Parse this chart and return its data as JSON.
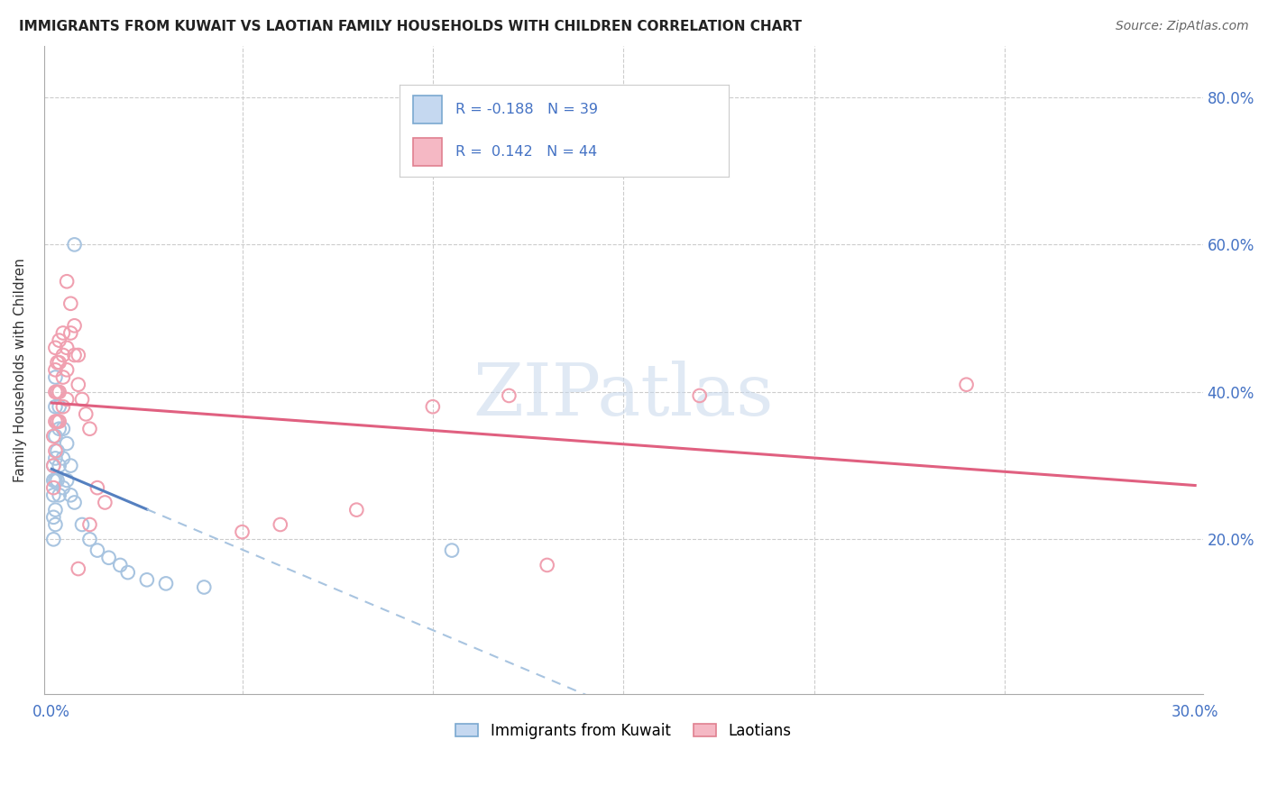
{
  "title": "IMMIGRANTS FROM KUWAIT VS LAOTIAN FAMILY HOUSEHOLDS WITH CHILDREN CORRELATION CHART",
  "source": "Source: ZipAtlas.com",
  "color_kuwait": "#a8c4e0",
  "color_laotian": "#f0a0b0",
  "color_kuwait_line": "#5580c0",
  "color_laotian_line": "#e06080",
  "color_kuwait_dash": "#a8c4e0",
  "kuwait_x": [
    0.0005,
    0.0005,
    0.0005,
    0.0005,
    0.0005,
    0.001,
    0.001,
    0.001,
    0.001,
    0.001,
    0.001,
    0.001,
    0.0015,
    0.0015,
    0.0015,
    0.0015,
    0.002,
    0.002,
    0.002,
    0.002,
    0.003,
    0.003,
    0.003,
    0.004,
    0.004,
    0.005,
    0.005,
    0.006,
    0.008,
    0.01,
    0.012,
    0.015,
    0.018,
    0.02,
    0.025,
    0.03,
    0.04,
    0.105,
    0.006
  ],
  "kuwait_y": [
    0.3,
    0.28,
    0.26,
    0.23,
    0.2,
    0.42,
    0.38,
    0.34,
    0.31,
    0.28,
    0.24,
    0.22,
    0.4,
    0.36,
    0.32,
    0.28,
    0.38,
    0.35,
    0.3,
    0.26,
    0.35,
    0.31,
    0.27,
    0.33,
    0.28,
    0.3,
    0.26,
    0.25,
    0.22,
    0.2,
    0.185,
    0.175,
    0.165,
    0.155,
    0.145,
    0.14,
    0.135,
    0.185,
    0.6
  ],
  "laotian_x": [
    0.0005,
    0.0005,
    0.0005,
    0.001,
    0.001,
    0.001,
    0.001,
    0.001,
    0.0015,
    0.0015,
    0.0015,
    0.002,
    0.002,
    0.002,
    0.002,
    0.003,
    0.003,
    0.003,
    0.003,
    0.004,
    0.004,
    0.004,
    0.005,
    0.005,
    0.006,
    0.006,
    0.007,
    0.007,
    0.008,
    0.009,
    0.01,
    0.012,
    0.014,
    0.05,
    0.06,
    0.08,
    0.1,
    0.12,
    0.13,
    0.17,
    0.24,
    0.004,
    0.007,
    0.01
  ],
  "laotian_y": [
    0.34,
    0.3,
    0.27,
    0.46,
    0.43,
    0.4,
    0.36,
    0.32,
    0.44,
    0.4,
    0.36,
    0.47,
    0.44,
    0.4,
    0.36,
    0.48,
    0.45,
    0.42,
    0.38,
    0.46,
    0.43,
    0.39,
    0.52,
    0.48,
    0.49,
    0.45,
    0.45,
    0.41,
    0.39,
    0.37,
    0.35,
    0.27,
    0.25,
    0.21,
    0.22,
    0.24,
    0.38,
    0.395,
    0.165,
    0.395,
    0.41,
    0.55,
    0.16,
    0.22
  ],
  "xlim": [
    -0.002,
    0.302
  ],
  "ylim": [
    -0.01,
    0.87
  ],
  "xtick_vals": [
    0.0,
    0.05,
    0.1,
    0.15,
    0.2,
    0.25,
    0.3
  ],
  "ytick_vals": [
    0.2,
    0.4,
    0.6,
    0.8
  ],
  "ytick_right_labels": [
    "20.0%",
    "40.0%",
    "60.0%",
    "80.0%"
  ],
  "watermark_text": "ZIPatlas",
  "legend_line1": "R = -0.188   N = 39",
  "legend_line2": "R =  0.142   N = 44"
}
